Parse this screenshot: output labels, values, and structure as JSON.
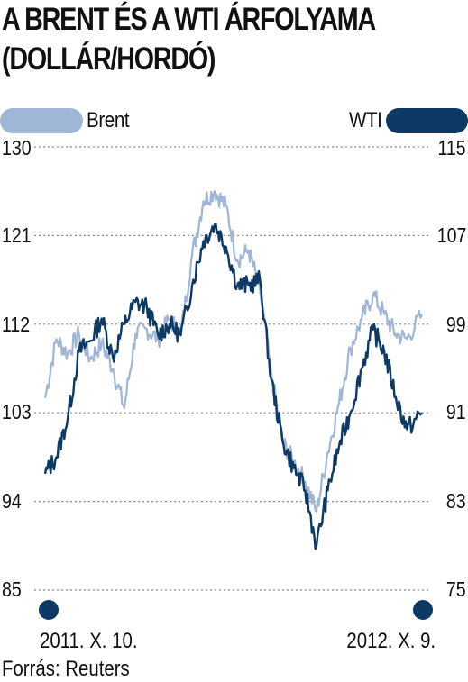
{
  "title_line1": "A BRENT ÉS A WTI ÁRFOLYAMA",
  "title_line2": "(DOLLÁR/HORDÓ)",
  "source": "Forrás: Reuters",
  "colors": {
    "brent": "#9fb6d6",
    "wti": "#0d3a64",
    "grid": "#8a8a8a"
  },
  "chart_data": {
    "type": "line",
    "x_start": "2011. X. 10.",
    "x_end": "2012. X. 9.",
    "grid": true,
    "legend": [
      "top-left: Brent",
      "top-right: WTI"
    ],
    "left_axis": {
      "label": "Brent",
      "ticks": [
        "130",
        "121",
        "112",
        "103",
        "94",
        "85"
      ],
      "ylim": [
        85,
        130
      ]
    },
    "right_axis": {
      "label": "WTI",
      "ticks": [
        "115",
        "107",
        "99",
        "91",
        "83",
        "75"
      ],
      "ylim": [
        75,
        115
      ]
    },
    "series": [
      {
        "name": "Brent",
        "axis": "left",
        "x": [
          0,
          0.03,
          0.06,
          0.09,
          0.12,
          0.15,
          0.18,
          0.21,
          0.24,
          0.27,
          0.3,
          0.33,
          0.36,
          0.39,
          0.42,
          0.45,
          0.48,
          0.51,
          0.54,
          0.57,
          0.6,
          0.63,
          0.66,
          0.69,
          0.72,
          0.75,
          0.78,
          0.81,
          0.84,
          0.87,
          0.9,
          0.93,
          0.96,
          1
        ],
        "values": [
          104.5,
          110.5,
          109.0,
          111.0,
          108.5,
          110.0,
          107.5,
          103.5,
          111.0,
          111.5,
          110.5,
          112.5,
          111.0,
          119.0,
          124.5,
          125.5,
          124.0,
          118.5,
          119.5,
          115.5,
          107.0,
          100.0,
          98.0,
          96.0,
          93.0,
          99.0,
          104.0,
          109.5,
          112.5,
          115.0,
          113.0,
          111.0,
          110.5,
          113.0
        ]
      },
      {
        "name": "WTI",
        "axis": "right",
        "x": [
          0,
          0.03,
          0.06,
          0.09,
          0.12,
          0.15,
          0.18,
          0.21,
          0.24,
          0.27,
          0.3,
          0.33,
          0.36,
          0.39,
          0.42,
          0.45,
          0.48,
          0.51,
          0.54,
          0.57,
          0.6,
          0.63,
          0.66,
          0.69,
          0.72,
          0.75,
          0.78,
          0.81,
          0.84,
          0.87,
          0.9,
          0.93,
          0.96,
          1
        ],
        "values": [
          85.5,
          87.0,
          90.5,
          96.5,
          97.5,
          99.5,
          96.0,
          99.0,
          101.0,
          100.5,
          98.0,
          99.0,
          98.0,
          102.5,
          106.5,
          108.0,
          106.0,
          102.5,
          102.5,
          103.0,
          94.0,
          88.5,
          86.0,
          84.0,
          79.0,
          84.0,
          88.0,
          91.0,
          95.0,
          98.5,
          96.5,
          92.5,
          89.5,
          91.0
        ]
      }
    ]
  }
}
